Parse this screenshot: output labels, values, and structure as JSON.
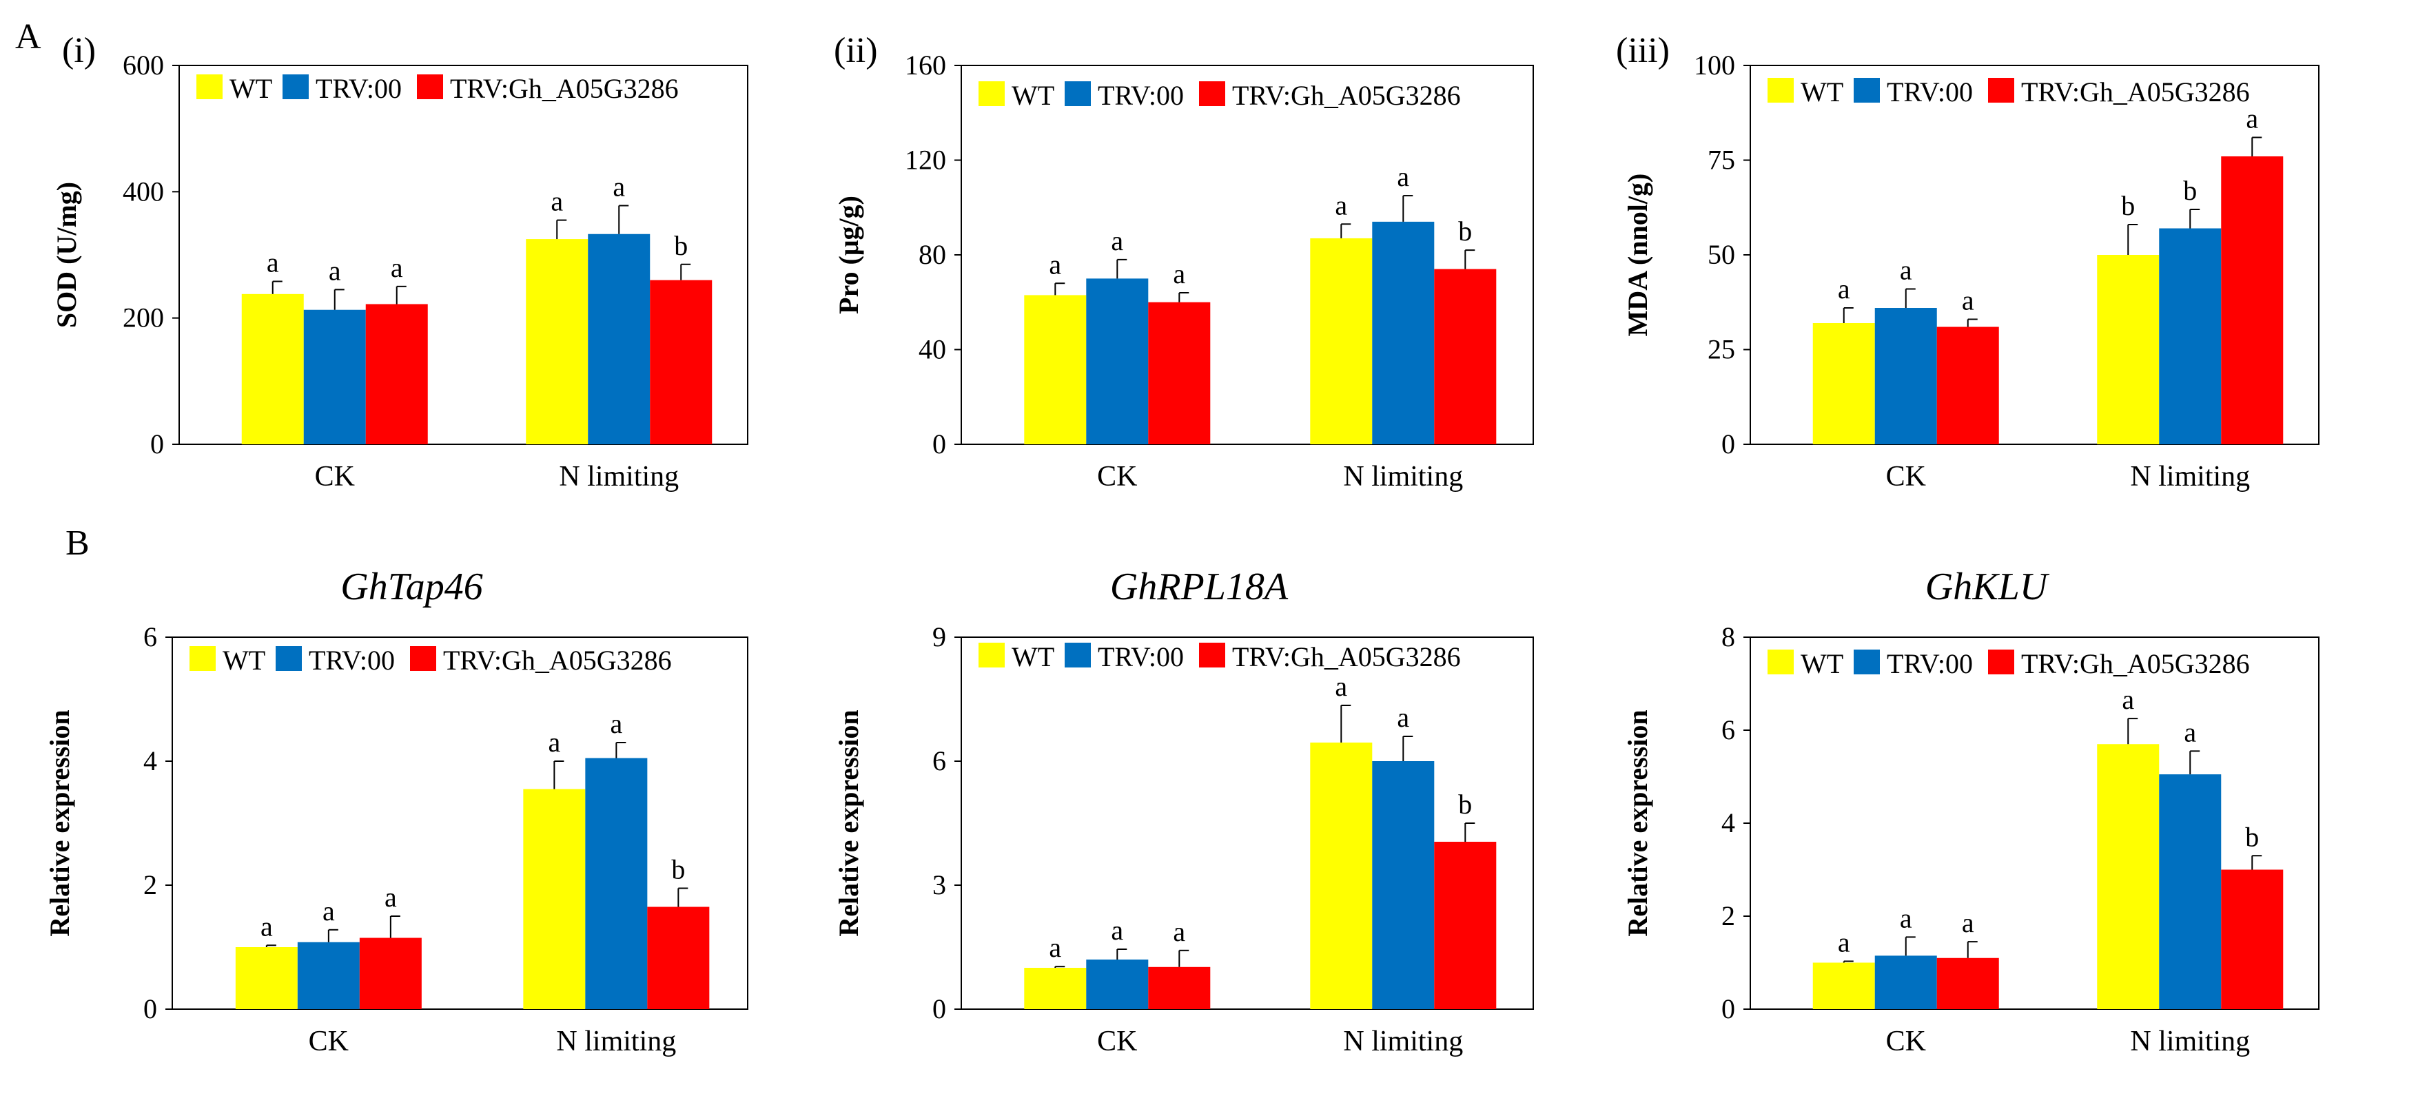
{
  "panel_letters": [
    "A",
    "B"
  ],
  "colors": {
    "WT": "#ffff00",
    "TRV:00": "#0070c0",
    "TRV:Gh_A05G3286": "#ff0000"
  },
  "chart_data": [
    {
      "type": "bar",
      "roman": "(i)",
      "title": "",
      "ylabel": "SOD (U/mg)",
      "ylim": [
        0,
        600
      ],
      "yticks": [
        "0",
        "200",
        "400",
        "600"
      ],
      "categories": [
        "CK",
        "N limiting"
      ],
      "legend": [
        "WT",
        "TRV:00",
        "TRV:Gh_A05G3286"
      ],
      "series": [
        {
          "name": "WT",
          "values": [
            238,
            325
          ],
          "errors": [
            20,
            30
          ],
          "labels": [
            "a",
            "a"
          ]
        },
        {
          "name": "TRV:00",
          "values": [
            213,
            333
          ],
          "errors": [
            32,
            45
          ],
          "labels": [
            "a",
            "a"
          ]
        },
        {
          "name": "TRV:Gh_A05G3286",
          "values": [
            222,
            260
          ],
          "errors": [
            28,
            25
          ],
          "labels": [
            "a",
            "b"
          ]
        }
      ]
    },
    {
      "type": "bar",
      "roman": "(ii)",
      "title": "",
      "ylabel": "Pro (μg/g)",
      "ylim": [
        0,
        160
      ],
      "yticks": [
        "0",
        "40",
        "80",
        "120",
        "160"
      ],
      "categories": [
        "CK",
        "N limiting"
      ],
      "legend": [
        "WT",
        "TRV:00",
        "TRV:Gh_A05G3286"
      ],
      "series": [
        {
          "name": "WT",
          "values": [
            63,
            87
          ],
          "errors": [
            5,
            6
          ],
          "labels": [
            "a",
            "a"
          ]
        },
        {
          "name": "TRV:00",
          "values": [
            70,
            94
          ],
          "errors": [
            8,
            11
          ],
          "labels": [
            "a",
            "a"
          ]
        },
        {
          "name": "TRV:Gh_A05G3286",
          "values": [
            60,
            74
          ],
          "errors": [
            4,
            8
          ],
          "labels": [
            "a",
            "b"
          ]
        }
      ]
    },
    {
      "type": "bar",
      "roman": "(iii)",
      "title": "",
      "ylabel": "MDA (nnol/g)",
      "ylim": [
        0,
        100
      ],
      "yticks": [
        "0",
        "25",
        "50",
        "75",
        "100"
      ],
      "categories": [
        "CK",
        "N limiting"
      ],
      "legend": [
        "WT",
        "TRV:00",
        "TRV:Gh_A05G3286"
      ],
      "series": [
        {
          "name": "WT",
          "values": [
            32,
            50
          ],
          "errors": [
            4,
            8
          ],
          "labels": [
            "a",
            "b"
          ]
        },
        {
          "name": "TRV:00",
          "values": [
            36,
            57
          ],
          "errors": [
            5,
            5
          ],
          "labels": [
            "a",
            "b"
          ]
        },
        {
          "name": "TRV:Gh_A05G3286",
          "values": [
            31,
            76
          ],
          "errors": [
            2,
            5
          ],
          "labels": [
            "a",
            "a"
          ]
        }
      ]
    },
    {
      "type": "bar",
      "roman": "",
      "title": "GhTap46",
      "ylabel": "Relative expression",
      "ylim": [
        0,
        6
      ],
      "yticks": [
        "0",
        "2",
        "4",
        "6"
      ],
      "categories": [
        "CK",
        "N limiting"
      ],
      "legend": [
        "WT",
        "TRV:00",
        "TRV:Gh_A05G3286"
      ],
      "series": [
        {
          "name": "WT",
          "values": [
            1.0,
            3.55
          ],
          "errors": [
            0.03,
            0.45
          ],
          "labels": [
            "a",
            "a"
          ]
        },
        {
          "name": "TRV:00",
          "values": [
            1.08,
            4.05
          ],
          "errors": [
            0.2,
            0.25
          ],
          "labels": [
            "a",
            "a"
          ]
        },
        {
          "name": "TRV:Gh_A05G3286",
          "values": [
            1.15,
            1.65
          ],
          "errors": [
            0.35,
            0.3
          ],
          "labels": [
            "a",
            "b"
          ]
        }
      ]
    },
    {
      "type": "bar",
      "roman": "",
      "title": "GhRPL18A",
      "ylabel": "Relative expression",
      "ylim": [
        0,
        9
      ],
      "yticks": [
        "0",
        "3",
        "6",
        "9"
      ],
      "categories": [
        "CK",
        "N limiting"
      ],
      "legend": [
        "WT",
        "TRV:00",
        "TRV:Gh_A05G3286"
      ],
      "series": [
        {
          "name": "WT",
          "values": [
            1.0,
            6.45
          ],
          "errors": [
            0.03,
            0.9
          ],
          "labels": [
            "a",
            "a"
          ]
        },
        {
          "name": "TRV:00",
          "values": [
            1.2,
            6.0
          ],
          "errors": [
            0.25,
            0.6
          ],
          "labels": [
            "a",
            "a"
          ]
        },
        {
          "name": "TRV:Gh_A05G3286",
          "values": [
            1.02,
            4.05
          ],
          "errors": [
            0.4,
            0.45
          ],
          "labels": [
            "a",
            "b"
          ]
        }
      ]
    },
    {
      "type": "bar",
      "roman": "",
      "title": "GhKLU",
      "ylabel": "Relative expression",
      "ylim": [
        0,
        8
      ],
      "yticks": [
        "0",
        "2",
        "4",
        "6",
        "8"
      ],
      "categories": [
        "CK",
        "N limiting"
      ],
      "legend": [
        "WT",
        "TRV:00",
        "TRV:Gh_A05G3286"
      ],
      "series": [
        {
          "name": "WT",
          "values": [
            1.0,
            5.7
          ],
          "errors": [
            0.03,
            0.55
          ],
          "labels": [
            "a",
            "a"
          ]
        },
        {
          "name": "TRV:00",
          "values": [
            1.15,
            5.05
          ],
          "errors": [
            0.4,
            0.5
          ],
          "labels": [
            "a",
            "a"
          ]
        },
        {
          "name": "TRV:Gh_A05G3286",
          "values": [
            1.1,
            3.0
          ],
          "errors": [
            0.35,
            0.3
          ],
          "labels": [
            "a",
            "b"
          ]
        }
      ]
    }
  ]
}
